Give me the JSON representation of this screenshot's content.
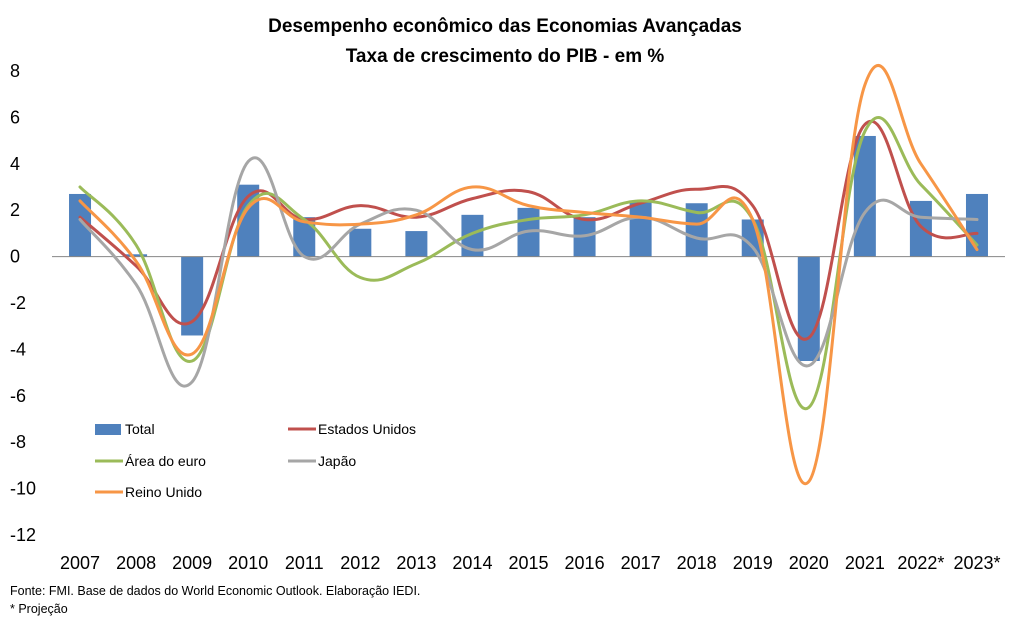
{
  "chart_data": {
    "type": "bar",
    "title": "Desempenho econômico das Economias Avançadas",
    "subtitle": "Taxa de crescimento do PIB - em %",
    "xlabel": "",
    "ylabel": "",
    "ylim": [
      -12,
      8
    ],
    "yticks": [
      -12,
      -10,
      -8,
      -6,
      -4,
      -2,
      0,
      2,
      4,
      6,
      8
    ],
    "grid": false,
    "legend_position": "lower-left",
    "categories": [
      "2007",
      "2008",
      "2009",
      "2010",
      "2011",
      "2012",
      "2013",
      "2014",
      "2015",
      "2016",
      "2017",
      "2018",
      "2019",
      "2020",
      "2021",
      "2022*",
      "2023*"
    ],
    "series": [
      {
        "name": "Total",
        "kind": "bar",
        "color": "#4F81BD",
        "values": [
          2.7,
          0.1,
          -3.4,
          3.1,
          1.7,
          1.2,
          1.1,
          1.8,
          2.1,
          1.7,
          2.4,
          2.3,
          1.6,
          -4.5,
          5.2,
          2.4,
          2.7
        ]
      },
      {
        "name": "Estados Unidos",
        "kind": "line",
        "color": "#C0504D",
        "values": [
          1.7,
          -0.4,
          -2.8,
          2.6,
          1.6,
          2.2,
          1.7,
          2.5,
          2.8,
          1.6,
          2.3,
          2.9,
          2.2,
          -3.5,
          5.7,
          1.3,
          1.0
        ]
      },
      {
        "name": "Área do euro",
        "kind": "line",
        "color": "#9BBB59",
        "values": [
          3.0,
          0.5,
          -4.5,
          2.2,
          1.6,
          -0.9,
          -0.3,
          1.0,
          1.6,
          1.8,
          2.4,
          1.9,
          1.6,
          -6.5,
          5.4,
          3.1,
          0.5
        ]
      },
      {
        "name": "Japão",
        "kind": "line",
        "color": "#A6A6A6",
        "values": [
          1.6,
          -1.2,
          -5.4,
          4.1,
          0.0,
          1.4,
          2.0,
          0.3,
          1.1,
          0.9,
          1.7,
          0.8,
          0.4,
          -4.7,
          1.9,
          1.7,
          1.6
        ]
      },
      {
        "name": "Reino Unido",
        "kind": "line",
        "color": "#F79646",
        "values": [
          2.4,
          -0.2,
          -4.2,
          2.1,
          1.5,
          1.4,
          1.8,
          3.0,
          2.2,
          1.9,
          1.7,
          1.4,
          1.6,
          -9.7,
          7.4,
          4.0,
          0.3
        ]
      }
    ]
  },
  "footer": {
    "source": "Fonte: FMI. Base de dados do World Economic Outlook. Elaboração IEDI.",
    "note": "* Projeção"
  }
}
